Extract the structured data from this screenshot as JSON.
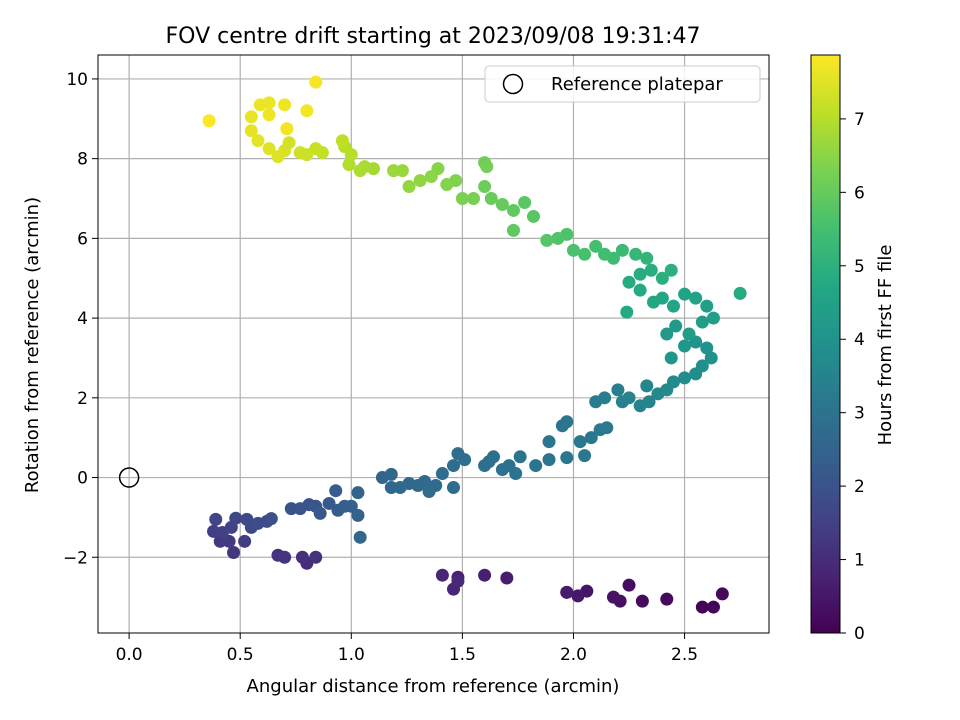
{
  "chart_data": {
    "type": "scatter",
    "title": "FOV centre drift starting at 2023/09/08 19:31:47",
    "xlabel": "Angular distance from reference (arcmin)",
    "ylabel": "Rotation from reference (arcmin)",
    "colorbar_label": "Hours from first FF file",
    "xlim": [
      -0.14,
      2.88
    ],
    "ylim": [
      -3.9,
      10.6
    ],
    "xticks": [
      0.0,
      0.5,
      1.0,
      1.5,
      2.0,
      2.5
    ],
    "xtick_labels": [
      "0.0",
      "0.5",
      "1.0",
      "1.5",
      "2.0",
      "2.5"
    ],
    "yticks": [
      -2,
      0,
      2,
      4,
      6,
      8,
      10
    ],
    "ytick_labels": [
      "−2",
      "0",
      "2",
      "4",
      "6",
      "8",
      "10"
    ],
    "colorbar_range": [
      0,
      7.87
    ],
    "colorbar_ticks": [
      0,
      1,
      2,
      3,
      4,
      5,
      6,
      7
    ],
    "colorbar_tick_labels": [
      "0",
      "1",
      "2",
      "3",
      "4",
      "5",
      "6",
      "7"
    ],
    "colormap": "viridis",
    "grid": true,
    "legend_position": "top-right",
    "reference": {
      "label": "Reference platepar",
      "x": 0.0,
      "y": 0.0
    },
    "points": [
      {
        "x": 2.58,
        "y": -3.25,
        "t": 0.05
      },
      {
        "x": 2.63,
        "y": -3.25,
        "t": 0.1
      },
      {
        "x": 2.67,
        "y": -2.92,
        "t": 0.15
      },
      {
        "x": 2.42,
        "y": -3.05,
        "t": 0.2
      },
      {
        "x": 2.31,
        "y": -3.1,
        "t": 0.25
      },
      {
        "x": 2.25,
        "y": -2.7,
        "t": 0.3
      },
      {
        "x": 2.21,
        "y": -3.1,
        "t": 0.35
      },
      {
        "x": 2.18,
        "y": -3.0,
        "t": 0.4
      },
      {
        "x": 2.06,
        "y": -2.85,
        "t": 0.45
      },
      {
        "x": 2.02,
        "y": -2.97,
        "t": 0.5
      },
      {
        "x": 1.97,
        "y": -2.88,
        "t": 0.55
      },
      {
        "x": 1.97,
        "y": -2.88,
        "t": 0.6
      },
      {
        "x": 1.7,
        "y": -2.52,
        "t": 0.65
      },
      {
        "x": 1.6,
        "y": -2.45,
        "t": 0.7
      },
      {
        "x": 1.48,
        "y": -2.5,
        "t": 0.75
      },
      {
        "x": 1.46,
        "y": -2.8,
        "t": 0.8
      },
      {
        "x": 1.41,
        "y": -2.45,
        "t": 0.85
      },
      {
        "x": 1.48,
        "y": -2.6,
        "t": 0.9
      },
      {
        "x": 0.8,
        "y": -2.15,
        "t": 1.0
      },
      {
        "x": 0.78,
        "y": -2.0,
        "t": 1.05
      },
      {
        "x": 0.84,
        "y": -2.0,
        "t": 1.1
      },
      {
        "x": 0.67,
        "y": -1.95,
        "t": 1.15
      },
      {
        "x": 0.7,
        "y": -2.0,
        "t": 1.2
      },
      {
        "x": 0.47,
        "y": -1.88,
        "t": 1.25
      },
      {
        "x": 0.41,
        "y": -1.6,
        "t": 1.3
      },
      {
        "x": 0.45,
        "y": -1.6,
        "t": 1.35
      },
      {
        "x": 0.52,
        "y": -1.6,
        "t": 1.4
      },
      {
        "x": 0.38,
        "y": -1.35,
        "t": 1.45
      },
      {
        "x": 0.42,
        "y": -1.38,
        "t": 1.5
      },
      {
        "x": 0.46,
        "y": -1.25,
        "t": 1.55
      },
      {
        "x": 0.39,
        "y": -1.05,
        "t": 1.6
      },
      {
        "x": 0.48,
        "y": -1.02,
        "t": 1.65
      },
      {
        "x": 0.53,
        "y": -1.05,
        "t": 1.7
      },
      {
        "x": 0.55,
        "y": -1.25,
        "t": 1.75
      },
      {
        "x": 0.58,
        "y": -1.15,
        "t": 1.8
      },
      {
        "x": 0.62,
        "y": -1.1,
        "t": 1.85
      },
      {
        "x": 0.64,
        "y": -1.03,
        "t": 1.9
      },
      {
        "x": 0.73,
        "y": -0.78,
        "t": 1.95
      },
      {
        "x": 0.77,
        "y": -0.78,
        "t": 2.0
      },
      {
        "x": 0.81,
        "y": -0.68,
        "t": 2.05
      },
      {
        "x": 0.84,
        "y": -0.72,
        "t": 2.1
      },
      {
        "x": 0.86,
        "y": -0.9,
        "t": 2.15
      },
      {
        "x": 0.9,
        "y": -0.65,
        "t": 2.2
      },
      {
        "x": 0.94,
        "y": -0.82,
        "t": 2.25
      },
      {
        "x": 0.93,
        "y": -0.33,
        "t": 2.3
      },
      {
        "x": 0.97,
        "y": -0.72,
        "t": 2.35
      },
      {
        "x": 1.0,
        "y": -0.72,
        "t": 2.4
      },
      {
        "x": 1.03,
        "y": -0.95,
        "t": 2.45
      },
      {
        "x": 1.03,
        "y": -0.38,
        "t": 2.5
      },
      {
        "x": 1.04,
        "y": -1.5,
        "t": 2.6
      },
      {
        "x": 1.14,
        "y": 0.0,
        "t": 2.55
      },
      {
        "x": 1.18,
        "y": 0.08,
        "t": 2.6
      },
      {
        "x": 1.18,
        "y": -0.25,
        "t": 2.62
      },
      {
        "x": 1.22,
        "y": -0.25,
        "t": 2.64
      },
      {
        "x": 1.26,
        "y": -0.15,
        "t": 2.66
      },
      {
        "x": 1.3,
        "y": -0.2,
        "t": 2.68
      },
      {
        "x": 1.33,
        "y": -0.1,
        "t": 2.7
      },
      {
        "x": 1.35,
        "y": -0.35,
        "t": 2.72
      },
      {
        "x": 1.38,
        "y": -0.2,
        "t": 2.74
      },
      {
        "x": 1.41,
        "y": 0.1,
        "t": 2.76
      },
      {
        "x": 1.46,
        "y": -0.25,
        "t": 2.78
      },
      {
        "x": 1.46,
        "y": 0.3,
        "t": 2.8
      },
      {
        "x": 1.48,
        "y": 0.6,
        "t": 2.82
      },
      {
        "x": 1.51,
        "y": 0.45,
        "t": 2.84
      },
      {
        "x": 1.6,
        "y": 0.3,
        "t": 2.86
      },
      {
        "x": 1.62,
        "y": 0.4,
        "t": 2.88
      },
      {
        "x": 1.64,
        "y": 0.52,
        "t": 2.9
      },
      {
        "x": 1.68,
        "y": 0.2,
        "t": 2.92
      },
      {
        "x": 1.71,
        "y": 0.3,
        "t": 2.94
      },
      {
        "x": 1.74,
        "y": 0.1,
        "t": 2.96
      },
      {
        "x": 1.76,
        "y": 0.52,
        "t": 2.98
      },
      {
        "x": 1.83,
        "y": 0.3,
        "t": 3.0
      },
      {
        "x": 1.89,
        "y": 0.45,
        "t": 3.02
      },
      {
        "x": 1.89,
        "y": 0.9,
        "t": 3.04
      },
      {
        "x": 1.95,
        "y": 1.3,
        "t": 3.06
      },
      {
        "x": 1.97,
        "y": 0.5,
        "t": 3.08
      },
      {
        "x": 1.97,
        "y": 1.4,
        "t": 3.1
      },
      {
        "x": 2.03,
        "y": 0.9,
        "t": 3.12
      },
      {
        "x": 2.05,
        "y": 0.55,
        "t": 3.14
      },
      {
        "x": 2.08,
        "y": 1.0,
        "t": 3.16
      },
      {
        "x": 2.12,
        "y": 1.2,
        "t": 3.18
      },
      {
        "x": 2.15,
        "y": 1.25,
        "t": 3.2
      },
      {
        "x": 2.1,
        "y": 1.9,
        "t": 3.25
      },
      {
        "x": 2.14,
        "y": 2.0,
        "t": 3.3
      },
      {
        "x": 2.2,
        "y": 2.2,
        "t": 3.35
      },
      {
        "x": 2.22,
        "y": 1.9,
        "t": 3.4
      },
      {
        "x": 2.25,
        "y": 2.0,
        "t": 3.45
      },
      {
        "x": 2.3,
        "y": 1.8,
        "t": 3.5
      },
      {
        "x": 2.34,
        "y": 1.9,
        "t": 3.55
      },
      {
        "x": 2.33,
        "y": 2.3,
        "t": 3.6
      },
      {
        "x": 2.38,
        "y": 2.1,
        "t": 3.65
      },
      {
        "x": 2.42,
        "y": 2.2,
        "t": 3.7
      },
      {
        "x": 2.45,
        "y": 2.4,
        "t": 3.75
      },
      {
        "x": 2.5,
        "y": 2.5,
        "t": 3.8
      },
      {
        "x": 2.55,
        "y": 2.6,
        "t": 3.85
      },
      {
        "x": 2.58,
        "y": 2.8,
        "t": 3.9
      },
      {
        "x": 2.62,
        "y": 3.0,
        "t": 3.95
      },
      {
        "x": 2.6,
        "y": 3.25,
        "t": 4.0
      },
      {
        "x": 2.55,
        "y": 3.4,
        "t": 4.05
      },
      {
        "x": 2.5,
        "y": 3.3,
        "t": 4.1
      },
      {
        "x": 2.44,
        "y": 3.0,
        "t": 4.15
      },
      {
        "x": 2.42,
        "y": 3.6,
        "t": 4.2
      },
      {
        "x": 2.46,
        "y": 3.8,
        "t": 4.25
      },
      {
        "x": 2.52,
        "y": 3.6,
        "t": 4.3
      },
      {
        "x": 2.58,
        "y": 3.9,
        "t": 4.35
      },
      {
        "x": 2.63,
        "y": 4.0,
        "t": 4.4
      },
      {
        "x": 2.6,
        "y": 4.3,
        "t": 4.45
      },
      {
        "x": 2.55,
        "y": 4.5,
        "t": 4.5
      },
      {
        "x": 2.5,
        "y": 4.6,
        "t": 4.55
      },
      {
        "x": 2.45,
        "y": 4.3,
        "t": 4.6
      },
      {
        "x": 2.4,
        "y": 4.5,
        "t": 4.65
      },
      {
        "x": 2.36,
        "y": 4.4,
        "t": 4.7
      },
      {
        "x": 2.3,
        "y": 4.7,
        "t": 4.75
      },
      {
        "x": 2.24,
        "y": 4.15,
        "t": 4.75
      },
      {
        "x": 2.75,
        "y": 4.62,
        "t": 4.8
      },
      {
        "x": 2.25,
        "y": 4.9,
        "t": 4.8
      },
      {
        "x": 2.3,
        "y": 5.1,
        "t": 4.85
      },
      {
        "x": 2.35,
        "y": 5.2,
        "t": 4.9
      },
      {
        "x": 2.4,
        "y": 5.0,
        "t": 4.95
      },
      {
        "x": 2.44,
        "y": 5.2,
        "t": 5.0
      },
      {
        "x": 2.33,
        "y": 5.5,
        "t": 5.1
      },
      {
        "x": 2.28,
        "y": 5.6,
        "t": 5.2
      },
      {
        "x": 2.22,
        "y": 5.7,
        "t": 5.3
      },
      {
        "x": 2.18,
        "y": 5.5,
        "t": 5.4
      },
      {
        "x": 2.14,
        "y": 5.6,
        "t": 5.45
      },
      {
        "x": 2.1,
        "y": 5.8,
        "t": 5.5
      },
      {
        "x": 2.05,
        "y": 5.6,
        "t": 5.55
      },
      {
        "x": 2.0,
        "y": 5.7,
        "t": 5.6
      },
      {
        "x": 1.97,
        "y": 6.1,
        "t": 5.65
      },
      {
        "x": 1.93,
        "y": 6.0,
        "t": 5.7
      },
      {
        "x": 1.88,
        "y": 5.95,
        "t": 5.75
      },
      {
        "x": 1.82,
        "y": 6.55,
        "t": 5.8
      },
      {
        "x": 1.78,
        "y": 6.9,
        "t": 5.85
      },
      {
        "x": 1.73,
        "y": 6.2,
        "t": 5.9
      },
      {
        "x": 1.73,
        "y": 6.7,
        "t": 5.95
      },
      {
        "x": 1.68,
        "y": 6.85,
        "t": 6.0
      },
      {
        "x": 1.63,
        "y": 7.0,
        "t": 6.05
      },
      {
        "x": 1.6,
        "y": 7.3,
        "t": 6.1
      },
      {
        "x": 1.6,
        "y": 7.9,
        "t": 6.15
      },
      {
        "x": 1.61,
        "y": 7.8,
        "t": 6.2
      },
      {
        "x": 1.55,
        "y": 7.0,
        "t": 6.25
      },
      {
        "x": 1.5,
        "y": 7.0,
        "t": 6.3
      },
      {
        "x": 1.47,
        "y": 7.45,
        "t": 6.35
      },
      {
        "x": 1.43,
        "y": 7.35,
        "t": 6.4
      },
      {
        "x": 1.39,
        "y": 7.75,
        "t": 6.45
      },
      {
        "x": 1.36,
        "y": 7.55,
        "t": 6.5
      },
      {
        "x": 1.31,
        "y": 7.45,
        "t": 6.55
      },
      {
        "x": 1.26,
        "y": 7.3,
        "t": 6.6
      },
      {
        "x": 1.23,
        "y": 7.7,
        "t": 6.65
      },
      {
        "x": 1.19,
        "y": 7.7,
        "t": 6.7
      },
      {
        "x": 1.1,
        "y": 7.75,
        "t": 6.8
      },
      {
        "x": 1.06,
        "y": 7.8,
        "t": 6.85
      },
      {
        "x": 1.04,
        "y": 7.7,
        "t": 6.9
      },
      {
        "x": 0.99,
        "y": 7.85,
        "t": 6.95
      },
      {
        "x": 1.0,
        "y": 8.1,
        "t": 7.0
      },
      {
        "x": 0.97,
        "y": 8.3,
        "t": 7.05
      },
      {
        "x": 0.96,
        "y": 8.45,
        "t": 7.1
      },
      {
        "x": 0.87,
        "y": 8.15,
        "t": 7.15
      },
      {
        "x": 0.84,
        "y": 8.25,
        "t": 7.2
      },
      {
        "x": 0.8,
        "y": 8.1,
        "t": 7.25
      },
      {
        "x": 0.77,
        "y": 8.15,
        "t": 7.3
      },
      {
        "x": 0.72,
        "y": 8.4,
        "t": 7.35
      },
      {
        "x": 0.7,
        "y": 8.2,
        "t": 7.4
      },
      {
        "x": 0.67,
        "y": 8.05,
        "t": 7.45
      },
      {
        "x": 0.63,
        "y": 8.25,
        "t": 7.5
      },
      {
        "x": 0.58,
        "y": 8.45,
        "t": 7.55
      },
      {
        "x": 0.55,
        "y": 8.7,
        "t": 7.6
      },
      {
        "x": 0.55,
        "y": 9.05,
        "t": 7.62
      },
      {
        "x": 0.59,
        "y": 9.35,
        "t": 7.64
      },
      {
        "x": 0.63,
        "y": 9.4,
        "t": 7.66
      },
      {
        "x": 0.63,
        "y": 9.1,
        "t": 7.68
      },
      {
        "x": 0.7,
        "y": 9.35,
        "t": 7.7
      },
      {
        "x": 0.71,
        "y": 8.75,
        "t": 7.72
      },
      {
        "x": 0.8,
        "y": 9.2,
        "t": 7.74
      },
      {
        "x": 0.84,
        "y": 9.92,
        "t": 7.78
      },
      {
        "x": 0.36,
        "y": 8.95,
        "t": 7.85
      }
    ]
  }
}
